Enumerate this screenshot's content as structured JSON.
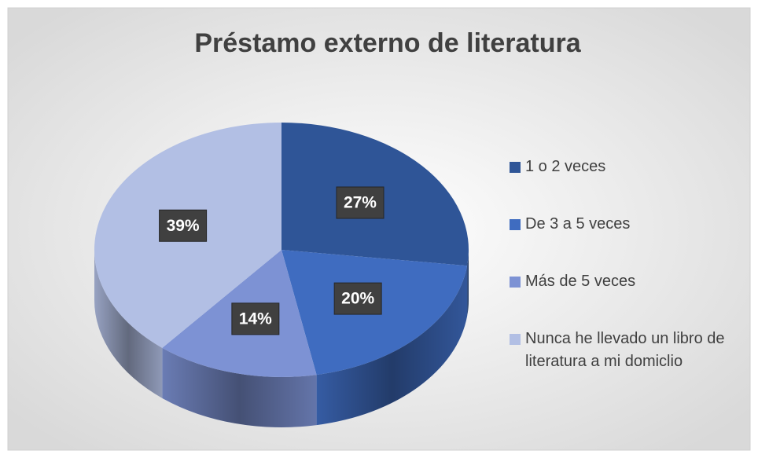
{
  "chart_data": {
    "type": "pie",
    "title": "Préstamo externo de literatura",
    "categories": [
      "1 o 2 veces",
      "De 3 a 5 veces",
      "Más de 5 veces",
      "Nunca he llevado un libro de literatura a mi domiclio"
    ],
    "values": [
      27,
      20,
      14,
      39
    ],
    "value_labels": [
      "27%",
      "20%",
      "14%",
      "39%"
    ],
    "colors": [
      "#2f5597",
      "#3f6cc0",
      "#7d92d4",
      "#b2bfe4"
    ],
    "legend": "right"
  }
}
